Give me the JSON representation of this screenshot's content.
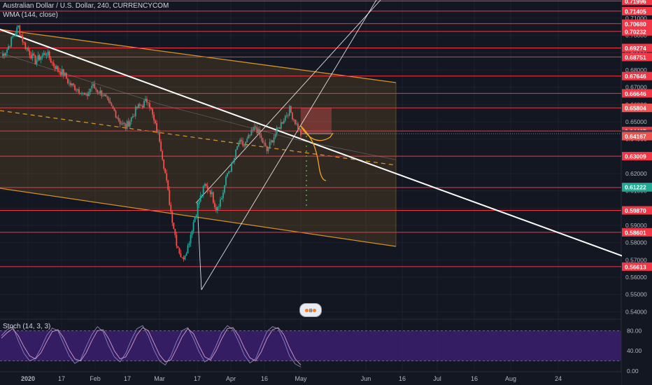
{
  "header": {
    "symbol_line": "Australian Dollar / U.S. Dollar, 240, CURRENCYCOM",
    "indicator_line": "WMA (144, close)",
    "oscillator_line": "Stoch (14, 3, 3)"
  },
  "colors": {
    "background": "#131722",
    "grid": "#1e222d",
    "up": "#26a69a",
    "down": "#ef5350",
    "level_line": "#f23645",
    "channel": "#f5a524",
    "trend": "#ffffff",
    "stoch_fill": "#3c1f6e",
    "stoch_line": "#8a84c8",
    "axis_text": "#b2b5be"
  },
  "chart_data": [
    {
      "type": "candlestick",
      "title": "Australian Dollar / U.S. Dollar, 240, CURRENCYCOM",
      "x_axis": {
        "tick_labels": [
          "2020",
          "17",
          "Feb",
          "17",
          "Mar",
          "17",
          "Apr",
          "16",
          "May",
          "Jun",
          "16",
          "Jul",
          "16",
          "Aug",
          "24"
        ]
      },
      "y_axis": {
        "ylim": [
          0.5365,
          0.7205
        ],
        "tick_labels": [
          "0.72000",
          "0.71000",
          "0.70000",
          "0.69000",
          "0.68000",
          "0.67000",
          "0.66000",
          "0.65000",
          "0.64000",
          "0.63000",
          "0.62000",
          "0.61000",
          "0.60000",
          "0.59000",
          "0.58000",
          "0.57000",
          "0.56000",
          "0.55000",
          "0.54000"
        ]
      },
      "horizontal_levels": [
        "0.71996",
        "0.71405",
        "0.70680",
        "0.70232",
        "0.69274",
        "0.68751",
        "0.67646",
        "0.66646",
        "0.65805",
        "0.64467",
        "0.63009",
        "0.61195",
        "0.59870",
        "0.58601",
        "0.56613"
      ],
      "price_labels": [
        {
          "value": "0.65804",
          "kind": "sell"
        },
        {
          "value": "0.64286",
          "kind": "last"
        },
        {
          "value": "0.64167",
          "kind": "buy"
        },
        {
          "value": "0.61222",
          "kind": "projection"
        }
      ],
      "price_path": [
        [
          0.688,
          0.692,
          0.699,
          0.705,
          0.695,
          0.69,
          0.685,
          0.688,
          0.69,
          0.684,
          0.68,
          0.678,
          0.672,
          0.67,
          0.668,
          0.664,
          0.671,
          0.668,
          0.666,
          0.66,
          0.656,
          0.65,
          0.647,
          0.652,
          0.658,
          0.66,
          0.663,
          0.65,
          0.64,
          0.62,
          0.598,
          0.58,
          0.57,
          0.578,
          0.592,
          0.604,
          0.613,
          0.61,
          0.6,
          0.606,
          0.62,
          0.626,
          0.638,
          0.636,
          0.642,
          0.647,
          0.64,
          0.633,
          0.64,
          0.646,
          0.652,
          0.657,
          0.65,
          0.643
        ]
      ],
      "wma_144": [
        0.69,
        0.66,
        0.64,
        0.628
      ],
      "annotations": [
        "descending channel",
        "rising wedge",
        "trend line",
        "projected target",
        "stop area"
      ]
    },
    {
      "type": "line",
      "title": "Stoch (14, 3, 3)",
      "ylim": [
        0,
        100
      ],
      "tick_labels": [
        "80.00",
        "40.00",
        "0.00"
      ],
      "band": [
        20,
        80
      ],
      "series": [
        {
          "values": [
            70,
            82,
            88,
            60,
            35,
            20,
            25,
            45,
            70,
            85,
            80,
            55,
            30,
            15,
            22,
            48,
            72,
            88,
            78,
            50,
            28,
            18,
            35,
            62,
            84,
            90,
            70,
            42,
            20,
            12,
            30,
            58,
            80,
            86,
            64,
            38,
            18,
            26,
            50,
            76,
            90,
            82,
            58,
            32,
            16,
            24,
            52,
            78,
            88,
            84,
            60,
            30,
            14,
            8
          ]
        },
        {
          "values": [
            65,
            76,
            84,
            70,
            48,
            30,
            24,
            36,
            58,
            78,
            82,
            66,
            42,
            24,
            20,
            36,
            60,
            80,
            82,
            64,
            40,
            24,
            28,
            48,
            72,
            86,
            80,
            56,
            32,
            18,
            22,
            44,
            68,
            84,
            74,
            50,
            28,
            22,
            40,
            64,
            84,
            86,
            70,
            46,
            26,
            20,
            38,
            64,
            82,
            86,
            72,
            46,
            24,
            12
          ]
        }
      ]
    }
  ]
}
